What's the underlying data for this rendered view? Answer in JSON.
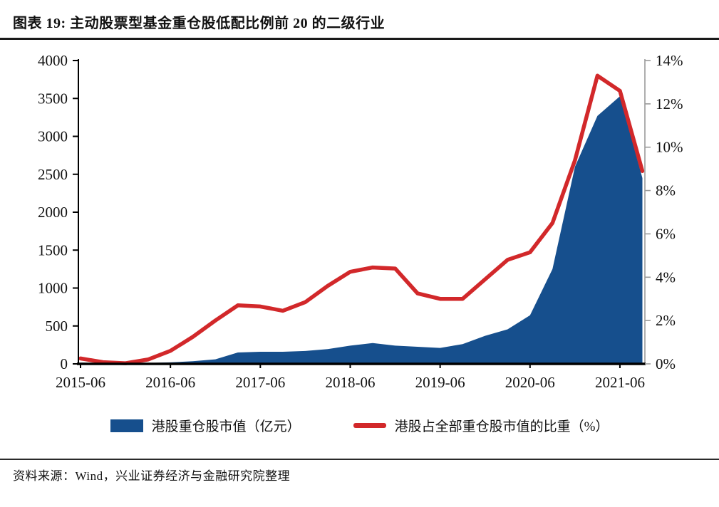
{
  "header": {
    "title": "图表 19:  主动股票型基金重仓股低配比例前 20 的二级行业"
  },
  "legend": {
    "items": [
      {
        "label": "港股重仓股市值（亿元）",
        "type": "area",
        "color": "#164f8d"
      },
      {
        "label": "港股占全部重仓股市值的比重（%）",
        "type": "line",
        "color": "#d2282a"
      }
    ]
  },
  "source": {
    "text": "资料来源：Wind，兴业证券经济与金融研究院整理"
  },
  "chart_data": {
    "type": "area",
    "x": [
      "2015-06",
      "2015-09",
      "2015-12",
      "2016-03",
      "2016-06",
      "2016-09",
      "2016-12",
      "2017-03",
      "2017-06",
      "2017-09",
      "2017-12",
      "2018-03",
      "2018-06",
      "2018-09",
      "2018-12",
      "2019-03",
      "2019-06",
      "2019-09",
      "2019-12",
      "2020-03",
      "2020-06",
      "2020-09",
      "2020-12",
      "2021-03",
      "2021-06",
      "2021-09"
    ],
    "x_tick_indices": [
      0,
      4,
      8,
      12,
      16,
      20,
      24
    ],
    "x_tick_labels": [
      "2015-06",
      "2016-06",
      "2017-06",
      "2018-06",
      "2019-06",
      "2020-06",
      "2021-06"
    ],
    "series": [
      {
        "name": "港股重仓股市值（亿元）",
        "type": "area",
        "axis": "left",
        "color": "#164f8d",
        "values": [
          15,
          10,
          10,
          12,
          20,
          35,
          60,
          150,
          160,
          160,
          170,
          195,
          240,
          275,
          240,
          225,
          210,
          260,
          370,
          455,
          640,
          1250,
          2600,
          3270,
          3530,
          2450
        ]
      },
      {
        "name": "港股占全部重仓股市值的比重（%）",
        "type": "line",
        "axis": "right",
        "color": "#d2282a",
        "values": [
          0.25,
          0.08,
          0.03,
          0.2,
          0.6,
          1.25,
          2.0,
          2.7,
          2.65,
          2.45,
          2.85,
          3.6,
          4.25,
          4.45,
          4.4,
          3.25,
          3.0,
          3.0,
          3.9,
          4.8,
          5.15,
          6.5,
          9.4,
          13.3,
          12.6,
          8.9
        ]
      }
    ],
    "left_axis": {
      "min": 0,
      "max": 4000,
      "step": 500,
      "labels": [
        "0",
        "500",
        "1000",
        "1500",
        "2000",
        "2500",
        "3000",
        "3500",
        "4000"
      ]
    },
    "right_axis": {
      "min": 0,
      "max": 14,
      "step": 2,
      "labels": [
        "0%",
        "2%",
        "4%",
        "6%",
        "8%",
        "10%",
        "12%",
        "14%"
      ]
    },
    "grid": false,
    "legend_position": "bottom"
  }
}
